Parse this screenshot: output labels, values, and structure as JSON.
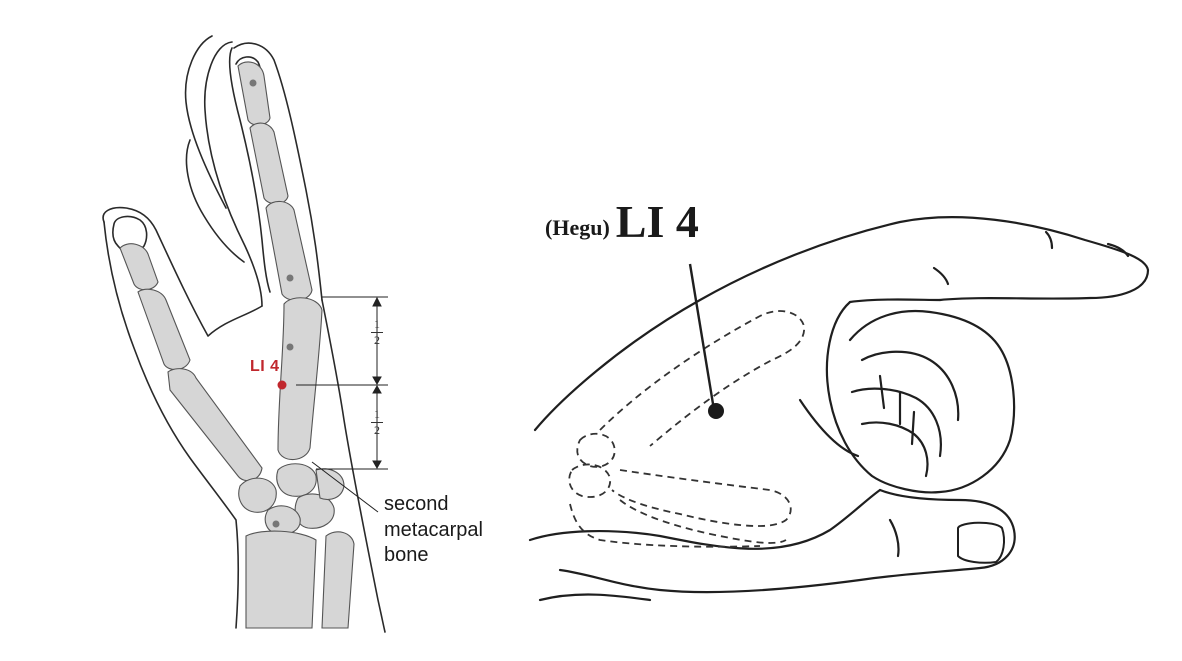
{
  "left_figure": {
    "point_label": "LI 4",
    "fraction_top": {
      "numerator": "1",
      "denominator": "2"
    },
    "fraction_bottom": {
      "numerator": "1",
      "denominator": "2"
    },
    "annotation_lines": [
      "second",
      "metacarpal",
      "bone"
    ]
  },
  "right_figure": {
    "name_paren": "(Hegu)",
    "point_code": "LI 4"
  },
  "colors": {
    "point_red": "#c0272d",
    "bone_fill": "#d6d6d6",
    "outline": "#2a2a2a"
  }
}
